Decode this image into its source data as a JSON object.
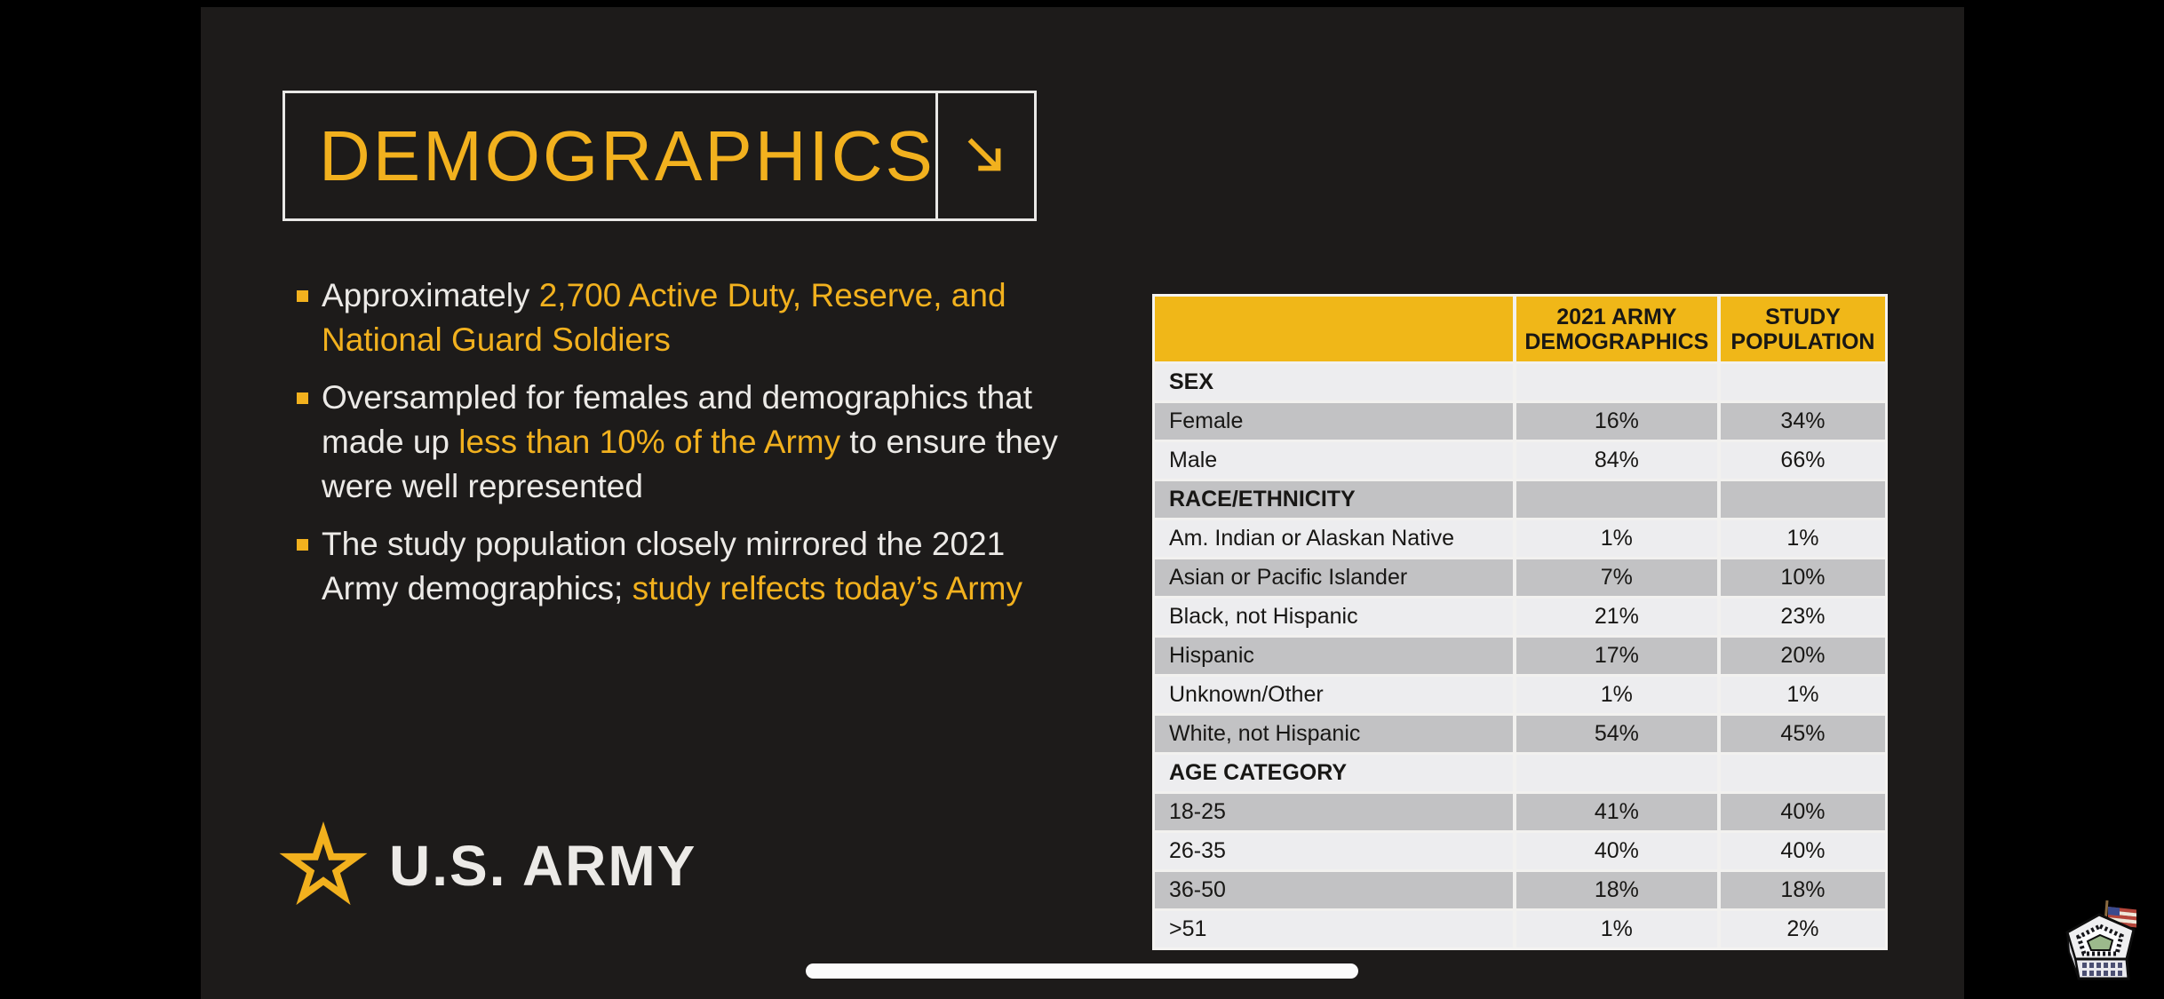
{
  "slide": {
    "title": {
      "text": "DEMOGRAPHICS",
      "arrow_icon": "arrow-down-right"
    },
    "bullets": [
      {
        "segments": [
          {
            "text": "Approximately ",
            "color": "white"
          },
          {
            "text": "2,700 Active Duty, Reserve, and National Guard Soldiers",
            "color": "gold"
          }
        ]
      },
      {
        "segments": [
          {
            "text": "Oversampled for females and demographics that made up ",
            "color": "white"
          },
          {
            "text": "less than 10% of the Army",
            "color": "gold"
          },
          {
            "text": " to ensure they were well represented",
            "color": "white"
          }
        ]
      },
      {
        "segments": [
          {
            "text": "The study population closely mirrored the 2021 Army demographics; ",
            "color": "white"
          },
          {
            "text": "study relfects today’s Army",
            "color": "gold"
          }
        ]
      }
    ],
    "logo": {
      "text": "U.S. ARMY",
      "icon": "army-star"
    },
    "table": {
      "columns": [
        "",
        "2021 ARMY\nDEMOGRAPHICS",
        "STUDY\nPOPULATION"
      ],
      "rows": [
        {
          "type": "section",
          "label": "SEX",
          "army": "",
          "study": "",
          "shade": "light"
        },
        {
          "type": "data",
          "label": "Female",
          "army": "16%",
          "study": "34%",
          "shade": "dark"
        },
        {
          "type": "data",
          "label": "Male",
          "army": "84%",
          "study": "66%",
          "shade": "light"
        },
        {
          "type": "section",
          "label": "RACE/ETHNICITY",
          "army": "",
          "study": "",
          "shade": "dark"
        },
        {
          "type": "data",
          "label": "Am. Indian or Alaskan Native",
          "army": "1%",
          "study": "1%",
          "shade": "light"
        },
        {
          "type": "data",
          "label": "Asian or Pacific Islander",
          "army": "7%",
          "study": "10%",
          "shade": "dark"
        },
        {
          "type": "data",
          "label": "Black, not Hispanic",
          "army": "21%",
          "study": "23%",
          "shade": "light"
        },
        {
          "type": "data",
          "label": "Hispanic",
          "army": "17%",
          "study": "20%",
          "shade": "dark"
        },
        {
          "type": "data",
          "label": "Unknown/Other",
          "army": "1%",
          "study": "1%",
          "shade": "light"
        },
        {
          "type": "data",
          "label": "White, not Hispanic",
          "army": "54%",
          "study": "45%",
          "shade": "dark"
        },
        {
          "type": "section",
          "label": "AGE CATEGORY",
          "army": "",
          "study": "",
          "shade": "light"
        },
        {
          "type": "data",
          "label": "18-25",
          "army": "41%",
          "study": "40%",
          "shade": "dark"
        },
        {
          "type": "data",
          "label": "26-35",
          "army": "40%",
          "study": "40%",
          "shade": "light"
        },
        {
          "type": "data",
          "label": "36-50",
          "army": "18%",
          "study": "18%",
          "shade": "dark"
        },
        {
          "type": "data",
          "label": ">51",
          "army": "1%",
          "study": "2%",
          "shade": "light"
        }
      ]
    }
  },
  "device": {
    "watermark_icon": "pentagon-building-flag"
  },
  "colors": {
    "gold": "#f2b11e",
    "table_header_bg": "#f0b718",
    "row_light": "#ededef",
    "row_dark": "#c2c2c4",
    "slide_bg": "#1d1b1a",
    "text_white": "#eceae7",
    "separator": "#f2f1ef"
  }
}
